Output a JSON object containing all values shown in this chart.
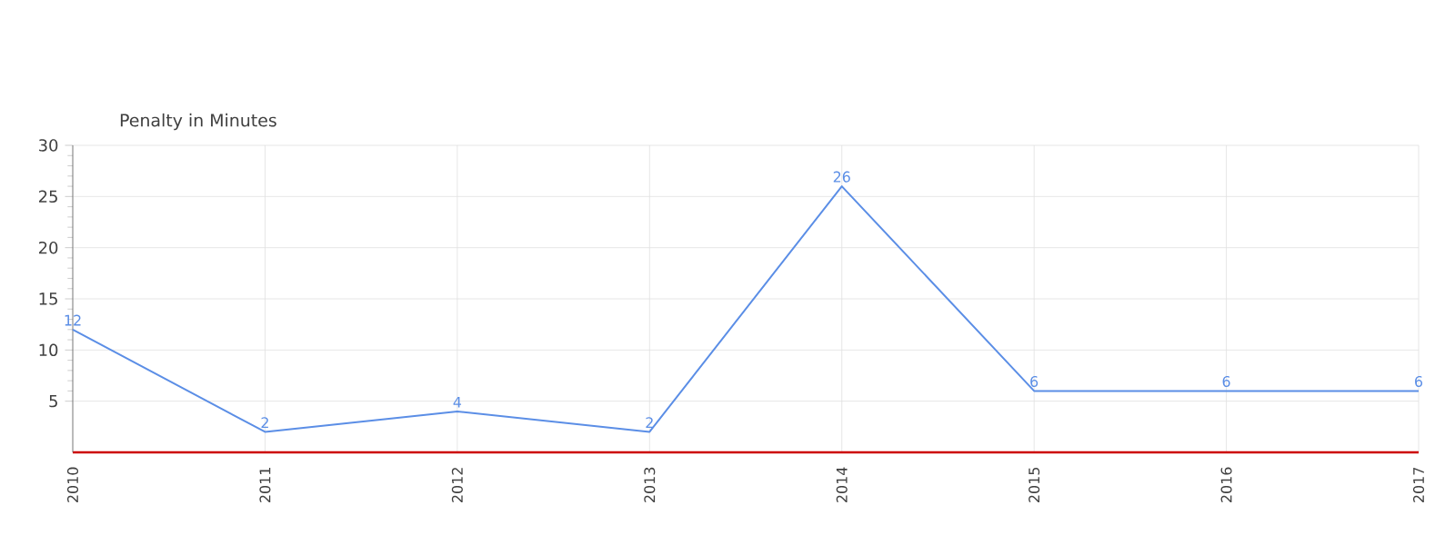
{
  "chart_data": {
    "type": "line",
    "title": "Penalty in Minutes",
    "categories": [
      "2010",
      "2011",
      "2012",
      "2013",
      "2014",
      "2015",
      "2016",
      "2017"
    ],
    "values": [
      12,
      2,
      4,
      2,
      26,
      6,
      6,
      6
    ],
    "color": "#5b8ee6",
    "ylim": [
      0,
      30
    ],
    "yticks": [
      5,
      10,
      15,
      20,
      25,
      30
    ],
    "grid": true,
    "data_labels": true,
    "marker": "none",
    "line_style": "solid"
  }
}
